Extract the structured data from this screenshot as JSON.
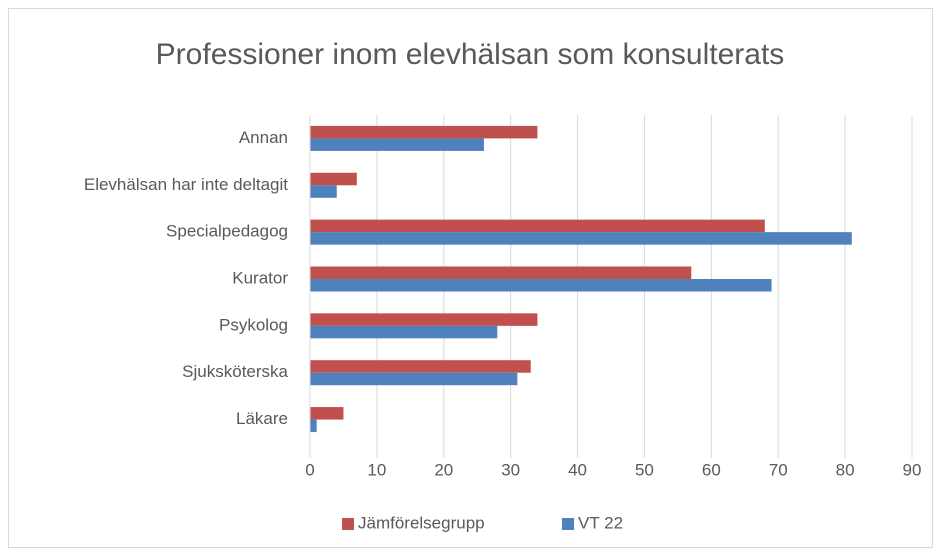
{
  "chart_data": {
    "type": "hbar",
    "title": "Professioner inom elevhälsan som konsulterats",
    "categories": [
      "Annan",
      "Elevhälsan har inte deltagit",
      "Specialpedagog",
      "Kurator",
      "Psykolog",
      "Sjuksköterska",
      "Läkare"
    ],
    "series": [
      {
        "name": "Jämförelsegrupp",
        "color": "#c0504d",
        "values": [
          34,
          7,
          68,
          57,
          34,
          33,
          5
        ]
      },
      {
        "name": "VT 22",
        "color": "#4f81bd",
        "values": [
          26,
          4,
          81,
          69,
          28,
          31,
          1
        ]
      }
    ],
    "xlim": [
      0,
      90
    ],
    "xticks": [
      0,
      10,
      20,
      30,
      40,
      50,
      60,
      70,
      80,
      90
    ],
    "grid": true,
    "legend": "bottom"
  }
}
